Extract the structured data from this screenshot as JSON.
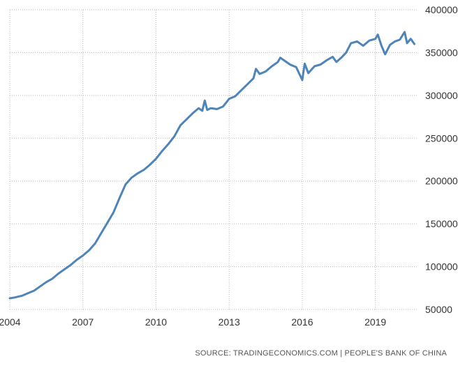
{
  "chart_data": {
    "type": "line",
    "title": "",
    "xlabel": "",
    "ylabel": "",
    "xlim": [
      2004,
      2020.7
    ],
    "ylim": [
      50000,
      400000
    ],
    "x_ticks": [
      "2004",
      "2007",
      "2010",
      "2013",
      "2016",
      "2019"
    ],
    "y_ticks": [
      "400000",
      "350000",
      "300000",
      "250000",
      "200000",
      "150000",
      "100000",
      "50000"
    ],
    "grid": true,
    "legend": "none",
    "source": "SOURCE: TRADINGECONOMICS.COM | PEOPLE'S BANK OF CHINA",
    "colors": {
      "line": "#4f84b8",
      "grid": "#b8b8b8",
      "text": "#333333"
    },
    "series": [
      {
        "points": [
          [
            2004.0,
            63000
          ],
          [
            2004.2,
            64000
          ],
          [
            2004.5,
            66000
          ],
          [
            2004.75,
            69000
          ],
          [
            2005.0,
            72000
          ],
          [
            2005.25,
            77000
          ],
          [
            2005.5,
            82000
          ],
          [
            2005.75,
            86000
          ],
          [
            2006.0,
            92000
          ],
          [
            2006.25,
            97000
          ],
          [
            2006.5,
            102000
          ],
          [
            2006.75,
            108000
          ],
          [
            2007.0,
            113000
          ],
          [
            2007.25,
            119000
          ],
          [
            2007.5,
            127000
          ],
          [
            2007.75,
            139000
          ],
          [
            2008.0,
            151000
          ],
          [
            2008.25,
            163000
          ],
          [
            2008.5,
            180000
          ],
          [
            2008.75,
            196000
          ],
          [
            2009.0,
            204000
          ],
          [
            2009.25,
            209000
          ],
          [
            2009.5,
            213000
          ],
          [
            2009.75,
            219000
          ],
          [
            2010.0,
            226000
          ],
          [
            2010.25,
            235000
          ],
          [
            2010.5,
            243000
          ],
          [
            2010.75,
            252000
          ],
          [
            2011.0,
            265000
          ],
          [
            2011.25,
            272000
          ],
          [
            2011.5,
            279000
          ],
          [
            2011.75,
            285000
          ],
          [
            2011.9,
            282000
          ],
          [
            2012.0,
            294000
          ],
          [
            2012.1,
            283000
          ],
          [
            2012.25,
            285000
          ],
          [
            2012.5,
            284000
          ],
          [
            2012.75,
            287000
          ],
          [
            2013.0,
            296000
          ],
          [
            2013.25,
            299000
          ],
          [
            2013.5,
            306000
          ],
          [
            2013.75,
            313000
          ],
          [
            2014.0,
            320000
          ],
          [
            2014.1,
            331000
          ],
          [
            2014.25,
            325000
          ],
          [
            2014.5,
            328000
          ],
          [
            2014.75,
            334000
          ],
          [
            2015.0,
            339000
          ],
          [
            2015.1,
            344000
          ],
          [
            2015.25,
            341000
          ],
          [
            2015.5,
            336000
          ],
          [
            2015.75,
            333000
          ],
          [
            2015.9,
            324000
          ],
          [
            2016.0,
            318000
          ],
          [
            2016.1,
            337000
          ],
          [
            2016.25,
            326000
          ],
          [
            2016.5,
            334000
          ],
          [
            2016.75,
            336000
          ],
          [
            2017.0,
            341000
          ],
          [
            2017.25,
            345000
          ],
          [
            2017.4,
            339000
          ],
          [
            2017.6,
            344000
          ],
          [
            2017.8,
            350000
          ],
          [
            2018.0,
            361000
          ],
          [
            2018.25,
            363000
          ],
          [
            2018.5,
            358000
          ],
          [
            2018.75,
            364000
          ],
          [
            2019.0,
            366000
          ],
          [
            2019.1,
            371000
          ],
          [
            2019.25,
            358000
          ],
          [
            2019.4,
            348000
          ],
          [
            2019.6,
            359000
          ],
          [
            2019.8,
            363000
          ],
          [
            2020.0,
            365000
          ],
          [
            2020.2,
            374000
          ],
          [
            2020.3,
            361000
          ],
          [
            2020.45,
            366000
          ],
          [
            2020.6,
            360000
          ]
        ]
      }
    ]
  }
}
